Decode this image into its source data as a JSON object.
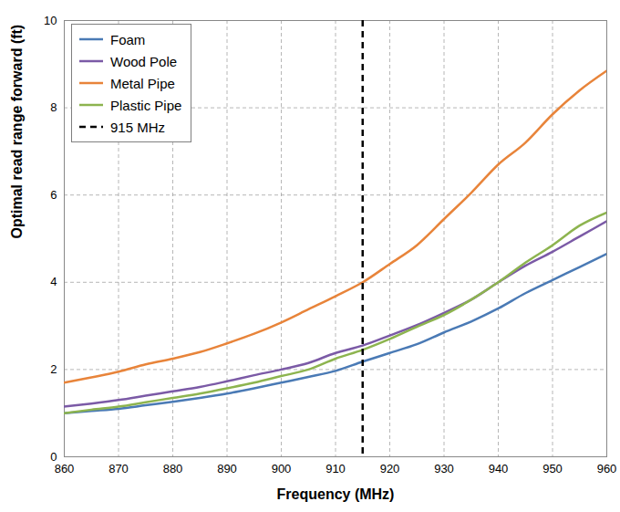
{
  "chart_data": {
    "type": "line",
    "x_label": "Frequency (MHz)",
    "y_label": "Optimal read range forward (ft)",
    "x": [
      860,
      865,
      870,
      875,
      880,
      885,
      890,
      895,
      900,
      905,
      910,
      915,
      920,
      925,
      930,
      935,
      940,
      945,
      950,
      955,
      960
    ],
    "series": [
      {
        "name": "Foam",
        "color": "#4a7ab5",
        "values": [
          1.0,
          1.05,
          1.1,
          1.18,
          1.26,
          1.35,
          1.45,
          1.57,
          1.7,
          1.83,
          1.97,
          2.18,
          2.38,
          2.58,
          2.85,
          3.1,
          3.4,
          3.75,
          4.05,
          4.35,
          4.65
        ]
      },
      {
        "name": "Wood Pole",
        "color": "#7b5aa6",
        "values": [
          1.15,
          1.22,
          1.3,
          1.4,
          1.5,
          1.6,
          1.73,
          1.87,
          2.0,
          2.15,
          2.38,
          2.55,
          2.78,
          3.02,
          3.3,
          3.6,
          4.0,
          4.38,
          4.7,
          5.05,
          5.4
        ]
      },
      {
        "name": "Metal Pipe",
        "color": "#e8843a",
        "values": [
          1.7,
          1.82,
          1.95,
          2.12,
          2.25,
          2.4,
          2.6,
          2.82,
          3.08,
          3.38,
          3.68,
          4.0,
          4.42,
          4.85,
          5.45,
          6.05,
          6.7,
          7.2,
          7.85,
          8.4,
          8.85
        ]
      },
      {
        "name": "Plastic Pipe",
        "color": "#8db44f",
        "values": [
          1.0,
          1.08,
          1.15,
          1.25,
          1.35,
          1.45,
          1.57,
          1.7,
          1.85,
          2.0,
          2.25,
          2.45,
          2.7,
          2.98,
          3.25,
          3.6,
          4.0,
          4.45,
          4.85,
          5.3,
          5.6
        ]
      }
    ],
    "reference_lines": [
      {
        "x": 915,
        "label": "915 MHz",
        "color": "#000000",
        "line_style": "dashed"
      }
    ],
    "xlim": [
      860,
      960
    ],
    "xticks": [
      860,
      870,
      880,
      890,
      900,
      910,
      920,
      930,
      940,
      950,
      960
    ],
    "ylim": [
      0,
      10
    ],
    "yticks": [
      0,
      2,
      4,
      6,
      8,
      10
    ],
    "grid": true,
    "legend": "top-left"
  }
}
